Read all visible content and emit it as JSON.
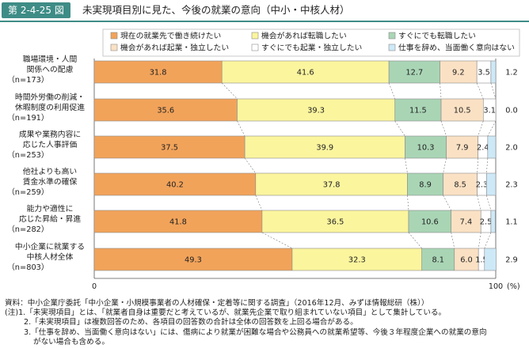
{
  "figure": {
    "label": "第 2-4-25 図",
    "title": "未実現項目別に見た、今後の就業の意向（中小・中核人材）"
  },
  "colors": {
    "header": "#3e8c86",
    "segments": [
      "#f2a35a",
      "#fbf59e",
      "#a9d5b5",
      "#fbe1c4",
      "#ffffff",
      "#cde9f7"
    ],
    "border": "#8a8a8a"
  },
  "chart_data": {
    "type": "bar",
    "orientation": "horizontal",
    "stacked": true,
    "xlim": [
      0,
      100
    ],
    "x_tick_labels": [
      "0",
      "100"
    ],
    "x_unit": "(%)",
    "legend_position": "top",
    "categories": [
      {
        "lines": [
          "職場環境・人間",
          "関係への配慮"
        ],
        "n": "（n=173）"
      },
      {
        "lines": [
          "時間外労働の削減・",
          "休暇制度の利用促進"
        ],
        "n": "（n=191）"
      },
      {
        "lines": [
          "成果や業務内容に",
          "応じた人事評価"
        ],
        "n": "（n=253）"
      },
      {
        "lines": [
          "他社よりも高い",
          "賃金水準の確保"
        ],
        "n": "（n=259）"
      },
      {
        "lines": [
          "能力や適性に",
          "応じた昇給・昇進"
        ],
        "n": "（n=282）"
      },
      {
        "lines": [
          "中小企業に就業する",
          "中核人材全体"
        ],
        "n": "（n=803）"
      }
    ],
    "series": [
      {
        "name": "現在の就業先で働き続けたい",
        "values": [
          31.8,
          35.6,
          37.5,
          40.2,
          41.8,
          49.3
        ]
      },
      {
        "name": "機会があれば転職したい",
        "values": [
          41.6,
          39.3,
          39.9,
          37.8,
          36.5,
          32.3
        ]
      },
      {
        "name": "すぐにでも転職したい",
        "values": [
          12.7,
          11.5,
          10.3,
          8.9,
          10.6,
          8.1
        ]
      },
      {
        "name": "機会があれば起業・独立したい",
        "values": [
          9.2,
          10.5,
          7.9,
          8.5,
          7.4,
          6.0
        ]
      },
      {
        "name": "すぐにでも起業・独立したい",
        "values": [
          3.5,
          3.1,
          2.4,
          2.3,
          2.5,
          1.5
        ]
      },
      {
        "name": "仕事を辞め、当面働く意向はない",
        "values": [
          1.2,
          0.0,
          2.0,
          2.3,
          1.1,
          2.9
        ]
      }
    ]
  },
  "notes": [
    "資料：中小企業庁委託「中小企業・小規模事業者の人材確保・定着等に関する調査」（2016年12月、みずほ情報総研（株））",
    "(注)1.「未実現項目」とは、「就業者自身は重要だと考えているが、就業先企業で取り組まれていない項目」として集計している。",
    "2.「未実現項目」は複数回答のため、各項目の回答数の合計は全体の回答数を上回る場合がある。",
    "3.「仕事を辞め、当面働く意向はない」には、傷病により就業が困難な場合や公務員への就業希望等、今後３年程度企業への就業の意向",
    "がない場合も含める。"
  ]
}
